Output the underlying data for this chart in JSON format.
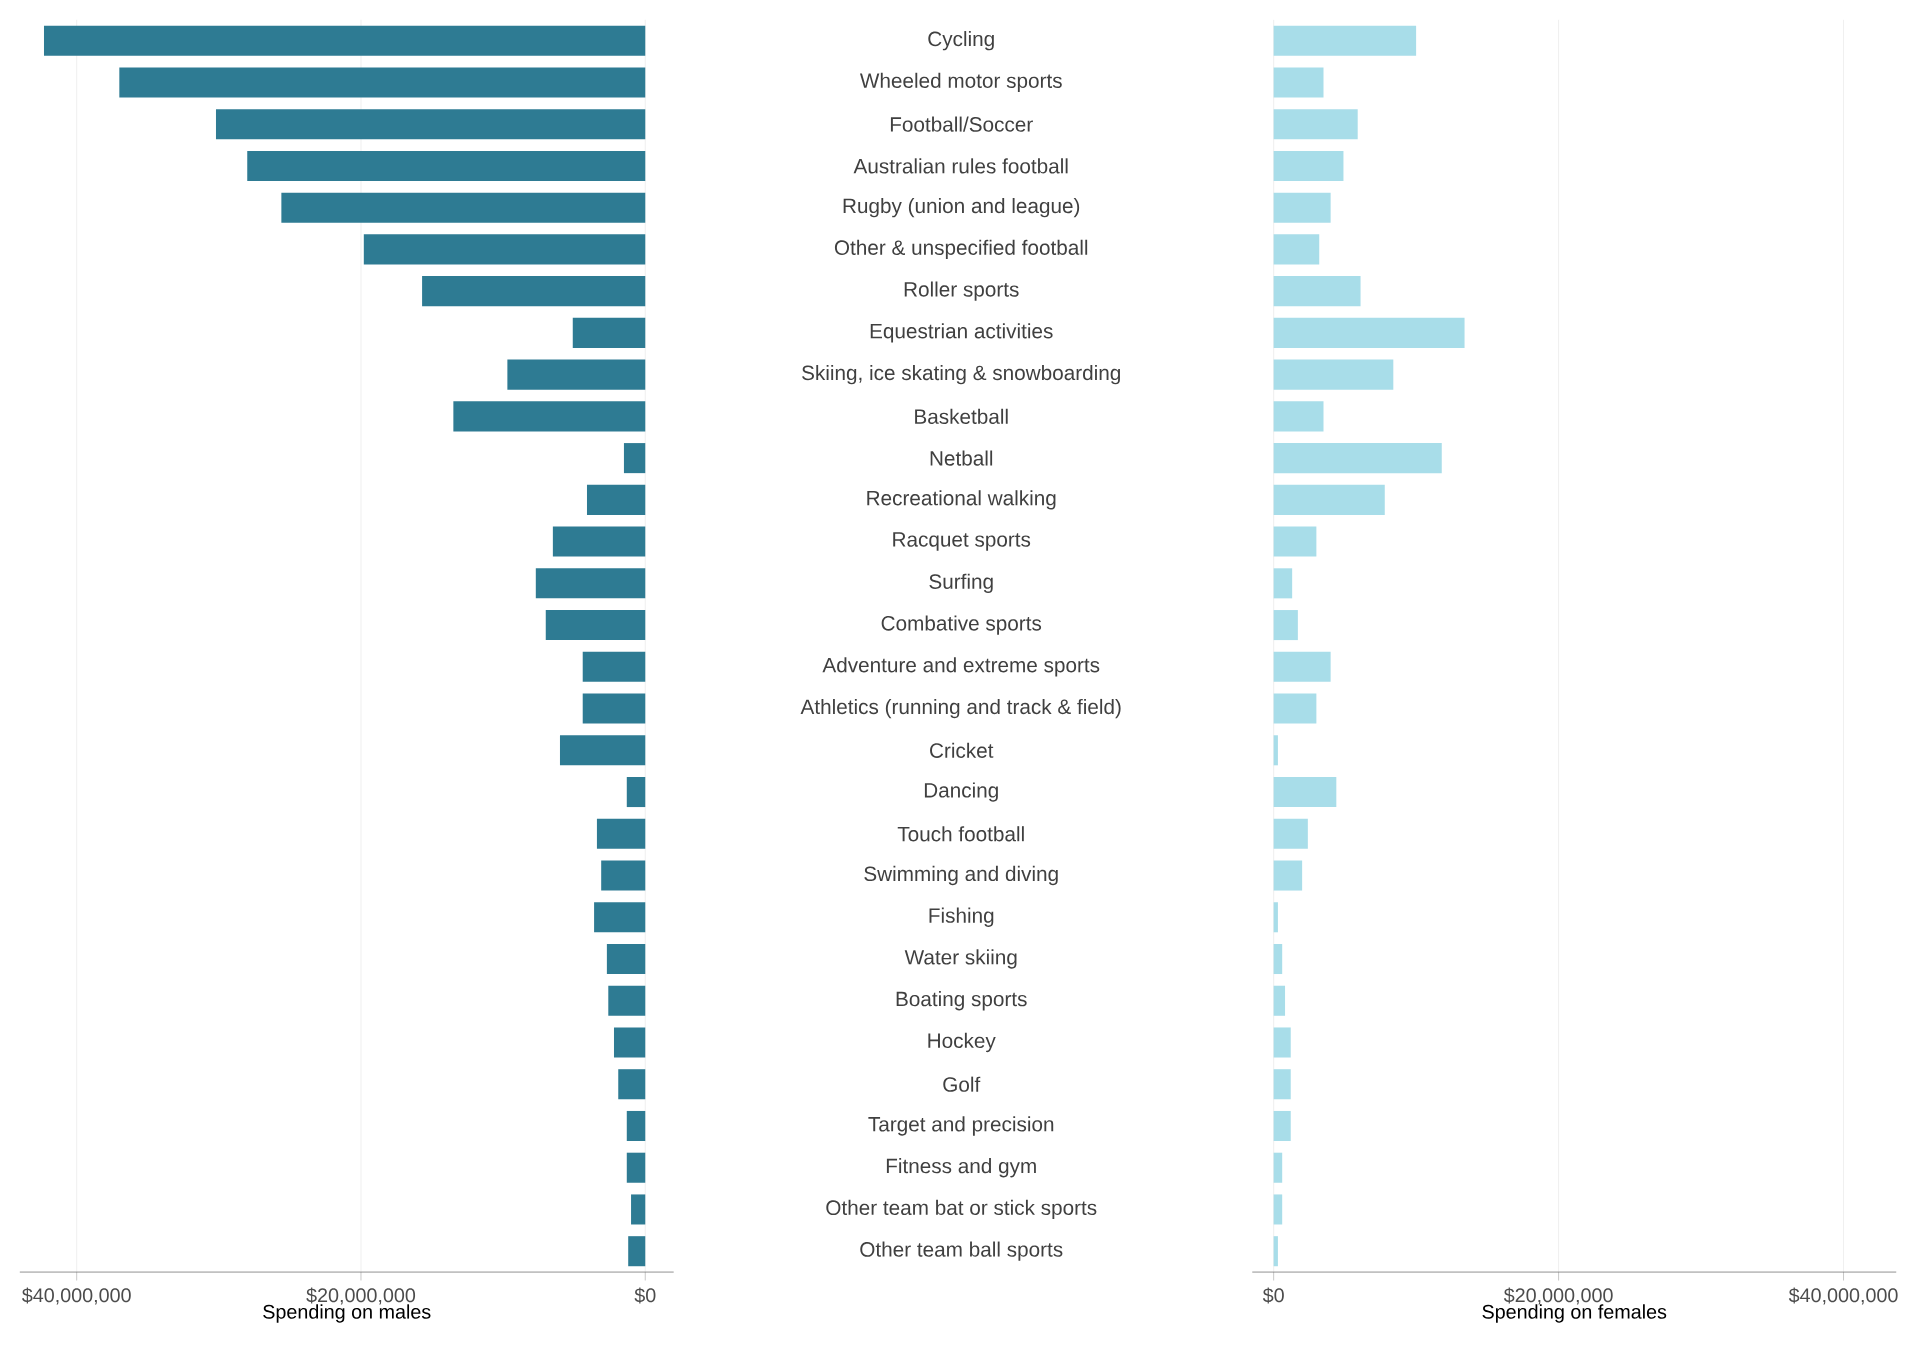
{
  "chart_data": [
    {
      "type": "bar",
      "orientation": "horizontal",
      "xlabel": "Spending on males",
      "color": "#2e7b93",
      "grid": "x",
      "categories": [
        "Cycling",
        "Wheeled motor sports",
        "Football/Soccer",
        "Australian rules football",
        "Rugby (union and league)",
        "Other & unspecified football",
        "Roller sports",
        "Equestrian activities",
        "Skiing, ice skating & snowboarding",
        "Basketball",
        "Netball",
        "Recreational walking",
        "Racquet sports",
        "Surfing",
        "Combative sports",
        "Adventure and extreme sports",
        "Athletics (running and track & field)",
        "Cricket",
        "Dancing",
        "Touch football",
        "Swimming and diving",
        "Fishing",
        "Water skiing",
        "Boating sports",
        "Hockey",
        "Golf",
        "Target and precision",
        "Fitness and gym",
        "Other team bat or stick sports",
        "Other team ball sports"
      ],
      "values": [
        42300000,
        37000000,
        30200000,
        28000000,
        25600000,
        19800000,
        15700000,
        5100000,
        9700000,
        13500000,
        1500000,
        4100000,
        6500000,
        7700000,
        7000000,
        4400000,
        4400000,
        6000000,
        1300000,
        3400000,
        3100000,
        3600000,
        2700000,
        2600000,
        2200000,
        1900000,
        1300000,
        1300000,
        1000000,
        1200000
      ],
      "xlim": [
        44000000,
        -2000000
      ],
      "xticks": [
        {
          "value": 40000000,
          "label": "$40,000,000"
        },
        {
          "value": 20000000,
          "label": "$20,000,000"
        },
        {
          "value": 0,
          "label": "$0"
        }
      ]
    },
    {
      "type": "bar",
      "orientation": "horizontal",
      "xlabel": "Spending on females",
      "color": "#a8dde9",
      "grid": "x",
      "tick_labels": "x",
      "categories": [
        null,
        null,
        null,
        null,
        null,
        null,
        null,
        null,
        null,
        null,
        null,
        null,
        null,
        null,
        null,
        null,
        null,
        null,
        null,
        null,
        null,
        null,
        null,
        null,
        null,
        null,
        null,
        null,
        null,
        null
      ],
      "values": [
        10000000,
        3500000,
        5900000,
        4900000,
        4000000,
        3200000,
        6100000,
        13400000,
        8400000,
        3500000,
        11800000,
        7800000,
        3000000,
        1300000,
        1700000,
        4000000,
        3000000,
        300000,
        4400000,
        2400000,
        2000000,
        300000,
        600000,
        800000,
        1200000,
        1200000,
        1200000,
        600000,
        600000,
        300000
      ],
      "xlim": [
        -1500000,
        43700000
      ],
      "xticks": [
        {
          "value": 0,
          "label": "$0"
        },
        {
          "value": 20000000,
          "label": "$20,000,000"
        },
        {
          "value": 40000000,
          "label": "$40,000,000"
        }
      ]
    }
  ]
}
